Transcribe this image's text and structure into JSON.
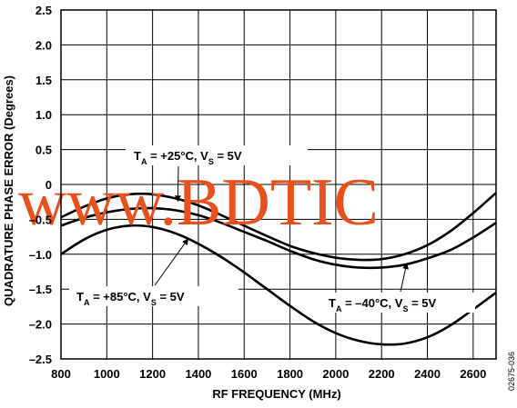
{
  "chart_data": {
    "type": "line",
    "title": "",
    "xlabel": "RF FREQUENCY (MHz)",
    "ylabel": "QUADRATURE PHASE ERROR (Degrees)",
    "xlim": [
      800,
      2700
    ],
    "ylim": [
      -2.5,
      2.5
    ],
    "xticks": [
      800,
      1000,
      1200,
      1400,
      1600,
      1800,
      2000,
      2200,
      2400,
      2600
    ],
    "yticks": [
      -2.5,
      -2.0,
      -1.5,
      -1.0,
      -0.5,
      0,
      0.5,
      1.0,
      1.5,
      2.0,
      2.5
    ],
    "ytick_labels": [
      "–2.5",
      "–2.0",
      "–1.5",
      "–1.0",
      "–0.5",
      "0",
      "0.5",
      "1.0",
      "1.5",
      "2.0",
      "2.5"
    ],
    "grid": true,
    "series": [
      {
        "name_parts": [
          "T",
          "A",
          " = +25°C, V",
          "S",
          " = 5V"
        ],
        "x": [
          800,
          900,
          1000,
          1100,
          1200,
          1300,
          1400,
          1500,
          1600,
          1700,
          1800,
          1900,
          2000,
          2100,
          2200,
          2300,
          2400,
          2500,
          2600,
          2700
        ],
        "y": [
          -0.47,
          -0.32,
          -0.2,
          -0.14,
          -0.14,
          -0.2,
          -0.3,
          -0.44,
          -0.59,
          -0.74,
          -0.88,
          -0.98,
          -1.05,
          -1.08,
          -1.07,
          -1.0,
          -0.87,
          -0.67,
          -0.41,
          -0.12
        ]
      },
      {
        "name_parts": [
          "T",
          "A",
          " = –40°C, V",
          "S",
          " = 5V"
        ],
        "x": [
          800,
          900,
          1000,
          1100,
          1200,
          1300,
          1400,
          1500,
          1600,
          1700,
          1800,
          1900,
          2000,
          2100,
          2200,
          2300,
          2400,
          2500,
          2600,
          2700
        ],
        "y": [
          -0.59,
          -0.48,
          -0.4,
          -0.35,
          -0.34,
          -0.37,
          -0.44,
          -0.55,
          -0.68,
          -0.81,
          -0.95,
          -1.07,
          -1.15,
          -1.19,
          -1.19,
          -1.15,
          -1.06,
          -0.94,
          -0.76,
          -0.55
        ]
      },
      {
        "name_parts": [
          "T",
          "A",
          " = +85°C, V",
          "S",
          " = 5V"
        ],
        "x": [
          800,
          900,
          1000,
          1100,
          1200,
          1300,
          1400,
          1500,
          1600,
          1700,
          1800,
          1900,
          2000,
          2100,
          2200,
          2300,
          2400,
          2500,
          2600,
          2700
        ],
        "y": [
          -1.0,
          -0.79,
          -0.65,
          -0.59,
          -0.61,
          -0.7,
          -0.85,
          -1.04,
          -1.26,
          -1.5,
          -1.74,
          -1.96,
          -2.13,
          -2.24,
          -2.29,
          -2.28,
          -2.19,
          -2.02,
          -1.79,
          -1.55
        ]
      }
    ],
    "annotations": [
      {
        "series": 0,
        "parts": [
          "T",
          "A",
          " = +25°C, V",
          "S",
          " = 5V"
        ],
        "arrow_to": [
          1310,
          -0.24
        ]
      },
      {
        "series": 2,
        "parts": [
          "T",
          "A",
          " = +85°C, V",
          "S",
          " = 5V"
        ],
        "arrow_to": [
          1355,
          -0.78
        ]
      },
      {
        "series": 1,
        "parts": [
          "T",
          "A",
          " = –40°C, V",
          "S",
          " = 5V"
        ],
        "arrow_to": [
          2310,
          -1.13
        ]
      }
    ],
    "watermark": "www.BDTIC",
    "figure_id": "02675-036"
  }
}
